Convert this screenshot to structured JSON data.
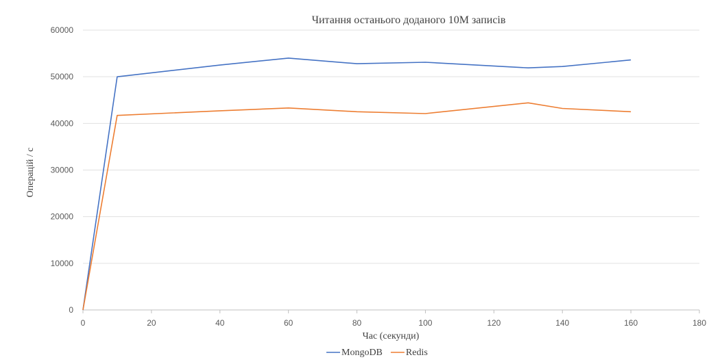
{
  "chart_data": {
    "type": "line",
    "title": "Читання останього доданого 10М записів",
    "xlabel": "Час (секунди)",
    "ylabel": "Операцій / с",
    "xlim": [
      0,
      180
    ],
    "ylim": [
      0,
      60000
    ],
    "x_ticks": [
      0,
      20,
      40,
      60,
      80,
      100,
      120,
      140,
      160,
      180
    ],
    "y_ticks": [
      0,
      10000,
      20000,
      30000,
      40000,
      50000,
      60000
    ],
    "grid": "horizontal",
    "legend_position": "bottom",
    "series": [
      {
        "name": "MongoDB",
        "color": "#4472c4",
        "points": [
          {
            "x": 0,
            "y": 0
          },
          {
            "x": 10,
            "y": 50000
          },
          {
            "x": 40,
            "y": 52500
          },
          {
            "x": 60,
            "y": 54000
          },
          {
            "x": 80,
            "y": 52800
          },
          {
            "x": 100,
            "y": 53100
          },
          {
            "x": 130,
            "y": 51900
          },
          {
            "x": 140,
            "y": 52200
          },
          {
            "x": 160,
            "y": 53600
          }
        ]
      },
      {
        "name": "Redis",
        "color": "#ed7d31",
        "points": [
          {
            "x": 0,
            "y": 0
          },
          {
            "x": 10,
            "y": 41700
          },
          {
            "x": 40,
            "y": 42700
          },
          {
            "x": 60,
            "y": 43300
          },
          {
            "x": 80,
            "y": 42500
          },
          {
            "x": 100,
            "y": 42100
          },
          {
            "x": 130,
            "y": 44400
          },
          {
            "x": 140,
            "y": 43200
          },
          {
            "x": 160,
            "y": 42500
          }
        ]
      }
    ]
  }
}
